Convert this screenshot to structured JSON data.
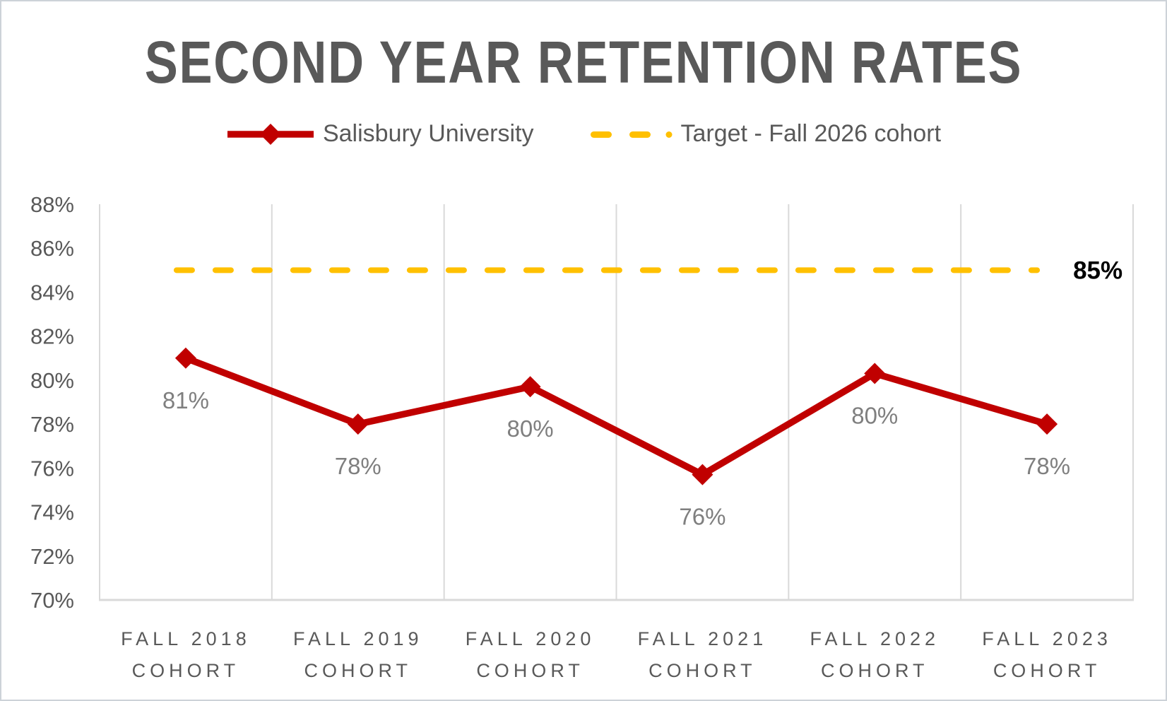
{
  "chart_data": {
    "type": "line",
    "title": "SECOND YEAR RETENTION RATES",
    "categories": [
      "FALL 2018 COHORT",
      "FALL 2019 COHORT",
      "FALL 2020 COHORT",
      "FALL 2021 COHORT",
      "FALL 2022 COHORT",
      "FALL 2023 COHORT"
    ],
    "series": [
      {
        "name": "Salisbury University",
        "values": [
          81,
          78,
          80,
          76,
          80,
          78
        ],
        "value_labels": [
          "81%",
          "78%",
          "80%",
          "76%",
          "80%",
          "78%"
        ],
        "plot_values": [
          81,
          78,
          79.7,
          75.7,
          80.3,
          78
        ],
        "marker": "diamond",
        "color": "#C00000"
      }
    ],
    "target": {
      "name": "Target - Fall 2026 cohort",
      "value": 85,
      "value_label": "85%",
      "style": "dashed",
      "color": "#FFC000"
    },
    "ylim": [
      70,
      88
    ],
    "yticks": [
      {
        "value": 70,
        "label": "70%"
      },
      {
        "value": 72,
        "label": "72%"
      },
      {
        "value": 74,
        "label": "74%"
      },
      {
        "value": 76,
        "label": "76%"
      },
      {
        "value": 78,
        "label": "78%"
      },
      {
        "value": 80,
        "label": "80%"
      },
      {
        "value": 82,
        "label": "82%"
      },
      {
        "value": 84,
        "label": "84%"
      },
      {
        "value": 86,
        "label": "86%"
      },
      {
        "value": 88,
        "label": "88%"
      }
    ],
    "grid": "vertical-only",
    "legend_position": "top",
    "legend": [
      {
        "label": "Salisbury University",
        "swatch": "solid-line-diamond",
        "color": "#C00000"
      },
      {
        "label": "Target - Fall 2026 cohort",
        "swatch": "dashed-line",
        "color": "#FFC000"
      }
    ],
    "colors": {
      "series": "#C00000",
      "target": "#FFC000",
      "title": "#595959",
      "axis_labels": "#595959",
      "data_labels": "#7F7F7F",
      "gridline": "#D9D9D9",
      "target_value_label": "#000000",
      "background": "#FFFFFF"
    }
  }
}
